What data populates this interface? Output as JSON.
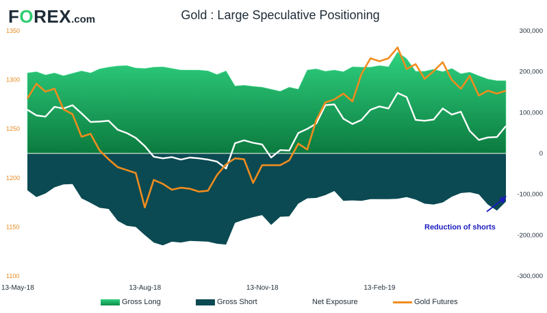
{
  "header": {
    "logo_prefix": "F",
    "logo_o": "O",
    "logo_suffix": "REX",
    "logo_domain": ".com",
    "title": "Gold : Large Speculative Positioning"
  },
  "annotation": {
    "text": "Reduction of shorts"
  },
  "legend": {
    "gross_long": "Gross Long",
    "gross_short": "Gross Short",
    "net_exposure": "Net Exposure",
    "gold_futures": "Gold Futures"
  },
  "colors": {
    "long_top": "#2fd17f",
    "long_bottom": "#0b7a3e",
    "short": "#0b4a52",
    "net": "#ffffff",
    "gold": "#f08c1e",
    "annotation": "#1b1bbf"
  },
  "chart_data": {
    "type": "area",
    "title": "Gold : Large Speculative Positioning",
    "x_tick_labels": [
      "13-May-18",
      "13-Aug-18",
      "13-Nov-18",
      "13-Feb-19"
    ],
    "y_left": {
      "label": "",
      "ylim": [
        1100,
        1350
      ],
      "ticks": [
        "1100",
        "1150",
        "1200",
        "1250",
        "1300",
        "1350"
      ]
    },
    "y_right": {
      "label": "",
      "ylim": [
        -300000,
        300000
      ],
      "ticks": [
        "-300,000",
        "-200,000",
        "-100,000",
        "0",
        "100,000",
        "200,000",
        "300,000"
      ]
    },
    "legend_position": "bottom",
    "series": [
      {
        "name": "Gross Long",
        "axis": "right",
        "values": [
          197000,
          200000,
          192000,
          197000,
          190000,
          196000,
          202000,
          197000,
          207000,
          211000,
          214000,
          215000,
          209000,
          208000,
          211000,
          212000,
          208000,
          204000,
          204000,
          204000,
          202000,
          193000,
          202000,
          165000,
          167000,
          164000,
          162000,
          157000,
          152000,
          162000,
          157000,
          204000,
          207000,
          201000,
          204000,
          200000,
          212000,
          211000,
          211000,
          215000,
          212000,
          248000,
          232000,
          201000,
          201000,
          206000,
          200000,
          208000,
          195000,
          199000,
          190000,
          182000,
          178000,
          178000
        ]
      },
      {
        "name": "Gross Short",
        "axis": "right",
        "values": [
          -90000,
          -107000,
          -98000,
          -83000,
          -76000,
          -75000,
          -110000,
          -121000,
          -133000,
          -136000,
          -165000,
          -177000,
          -180000,
          -200000,
          -218000,
          -225000,
          -216000,
          -218000,
          -214000,
          -215000,
          -216000,
          -221000,
          -223000,
          -170000,
          -162000,
          -156000,
          -151000,
          -175000,
          -155000,
          -154000,
          -123000,
          -110000,
          -109000,
          -102000,
          -92000,
          -116000,
          -115000,
          -116000,
          -112000,
          -112000,
          -112000,
          -111000,
          -107000,
          -113000,
          -123000,
          -125000,
          -120000,
          -106000,
          -97000,
          -95000,
          -100000,
          -125000,
          -140000,
          -118000
        ]
      },
      {
        "name": "Net Exposure",
        "axis": "right",
        "values": [
          107000,
          93000,
          90000,
          114000,
          110000,
          118000,
          98000,
          77000,
          78000,
          80000,
          58000,
          50000,
          38000,
          18000,
          -8000,
          -12000,
          -9000,
          -15000,
          -10000,
          -12000,
          -15000,
          -20000,
          -37000,
          25000,
          32000,
          26000,
          22000,
          -10000,
          8000,
          7000,
          50000,
          60000,
          73000,
          118000,
          120000,
          85000,
          72000,
          82000,
          107000,
          115000,
          110000,
          148000,
          138000,
          82000,
          80000,
          83000,
          110000,
          95000,
          102000,
          55000,
          33000,
          39000,
          40000,
          67000
        ]
      },
      {
        "name": "Gold Futures",
        "axis": "left",
        "values": [
          1281,
          1296,
          1288,
          1291,
          1270,
          1265,
          1242,
          1245,
          1228,
          1219,
          1211,
          1208,
          1205,
          1170,
          1198,
          1194,
          1188,
          1190,
          1189,
          1186,
          1187,
          1203,
          1214,
          1220,
          1219,
          1195,
          1213,
          1213,
          1213,
          1218,
          1235,
          1229,
          1259,
          1277,
          1280,
          1286,
          1278,
          1306,
          1322,
          1319,
          1322,
          1333,
          1311,
          1316,
          1301,
          1309,
          1318,
          1300,
          1291,
          1304,
          1284,
          1289,
          1286,
          1289
        ]
      }
    ]
  }
}
